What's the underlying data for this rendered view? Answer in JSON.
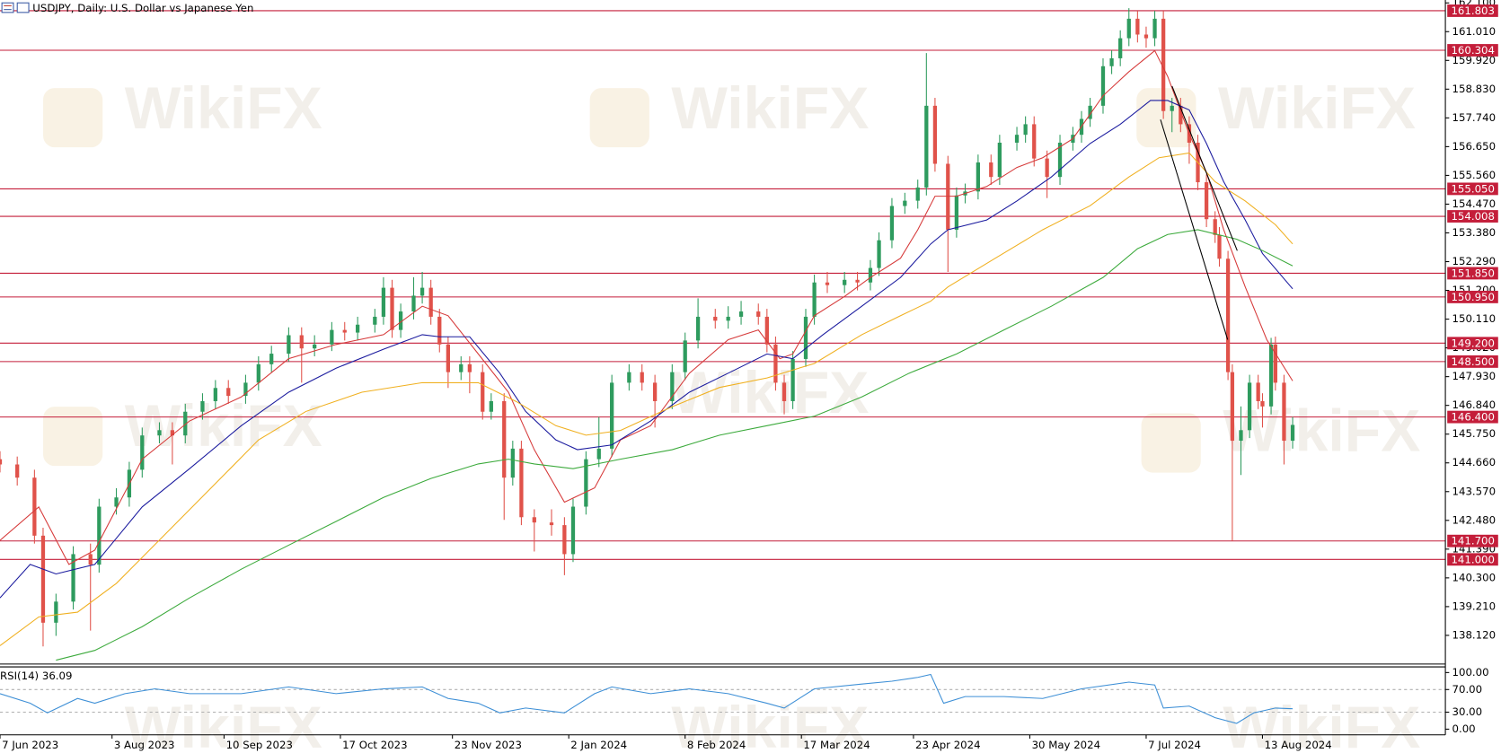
{
  "chart_data": {
    "type": "candlestick",
    "title": "USDJPY, Daily:  U.S. Dollar vs Japanese Yen",
    "watermark": "WikiFX",
    "xlim": [
      0,
      335
    ],
    "xticks": [
      {
        "value": 0,
        "label": "7 Jun 2023"
      },
      {
        "value": 26,
        "label": "3 Aug 2023"
      },
      {
        "value": 52,
        "label": "10 Sep 2023"
      },
      {
        "value": 79,
        "label": "17 Oct 2023"
      },
      {
        "value": 105,
        "label": "23 Nov 2023"
      },
      {
        "value": 132,
        "label": "2 Jan 2024"
      },
      {
        "value": 159,
        "label": "8 Feb 2024"
      },
      {
        "value": 186,
        "label": "17 Mar 2024"
      },
      {
        "value": 212,
        "label": "23 Apr 2024"
      },
      {
        "value": 239,
        "label": "30 May 2024"
      },
      {
        "value": 266,
        "label": "7 Jul 2024"
      },
      {
        "value": 293,
        "label": "13 Aug 2024"
      }
    ],
    "ylim": [
      137.07,
      162.21
    ],
    "yticks": [
      {
        "value": 162.1,
        "label": "162.100"
      },
      {
        "value": 161.01,
        "label": "161.010"
      },
      {
        "value": 159.92,
        "label": "159.920"
      },
      {
        "value": 158.83,
        "label": "158.830"
      },
      {
        "value": 157.74,
        "label": "157.740"
      },
      {
        "value": 156.65,
        "label": "156.650"
      },
      {
        "value": 155.56,
        "label": "155.560"
      },
      {
        "value": 154.47,
        "label": "154.470"
      },
      {
        "value": 153.38,
        "label": "153.380"
      },
      {
        "value": 152.29,
        "label": "152.290"
      },
      {
        "value": 151.2,
        "label": "151.200"
      },
      {
        "value": 150.11,
        "label": "150.110"
      },
      {
        "value": 149.02,
        "label": "149.020"
      },
      {
        "value": 147.93,
        "label": "147.930"
      },
      {
        "value": 146.84,
        "label": "146.840"
      },
      {
        "value": 145.75,
        "label": "145.750"
      },
      {
        "value": 144.66,
        "label": "144.660"
      },
      {
        "value": 143.57,
        "label": "143.570"
      },
      {
        "value": 142.48,
        "label": "142.480"
      },
      {
        "value": 141.39,
        "label": "141.390"
      },
      {
        "value": 140.3,
        "label": "140.300"
      },
      {
        "value": 139.21,
        "label": "139.210"
      },
      {
        "value": 138.12,
        "label": "138.120"
      }
    ],
    "levels": {
      "color": "#c41e3a",
      "values": [
        {
          "value": 161.803,
          "label": "161.803"
        },
        {
          "value": 160.304,
          "label": "160.304"
        },
        {
          "value": 155.05,
          "label": "155.050"
        },
        {
          "value": 154.008,
          "label": "154.008"
        },
        {
          "value": 151.85,
          "label": "151.850"
        },
        {
          "value": 150.95,
          "label": "150.950"
        },
        {
          "value": 149.2,
          "label": "149.200"
        },
        {
          "value": 148.5,
          "label": "148.500"
        },
        {
          "value": 146.4,
          "label": "146.400"
        },
        {
          "value": 141.7,
          "label": "141.700"
        },
        {
          "value": 141.0,
          "label": "141.000"
        }
      ]
    },
    "candles": {
      "up_color": "#2e9b5e",
      "down_color": "#e0524a",
      "x": [
        0,
        4,
        8,
        10,
        13,
        17,
        21,
        23,
        27,
        30,
        33,
        37,
        40,
        43,
        47,
        50,
        53,
        57,
        60,
        63,
        67,
        70,
        73,
        77,
        80,
        83,
        87,
        89,
        91,
        93,
        96,
        98,
        100,
        102,
        104,
        107,
        109,
        112,
        114,
        117,
        119,
        121,
        124,
        128,
        131,
        133,
        136,
        139,
        142,
        146,
        149,
        152,
        156,
        159,
        162,
        166,
        169,
        172,
        176,
        178,
        180,
        182,
        184,
        187,
        189,
        192,
        196,
        199,
        202,
        204,
        207,
        210,
        213,
        215,
        217,
        220,
        222,
        224,
        227,
        230,
        232,
        236,
        238,
        240,
        243,
        246,
        249,
        251,
        253,
        256,
        258,
        260,
        262,
        264,
        266,
        268,
        270,
        272,
        274,
        276,
        278,
        280,
        282,
        283,
        285,
        286,
        288,
        290,
        292,
        293,
        295,
        296,
        298,
        300
      ],
      "open": [
        144.8,
        144.6,
        144.1,
        141.9,
        138.6,
        139.4,
        141.2,
        140.8,
        143.0,
        143.35,
        144.4,
        145.7,
        145.9,
        145.7,
        146.6,
        147.0,
        147.5,
        147.2,
        147.7,
        148.4,
        148.8,
        149.5,
        149.0,
        149.15,
        149.7,
        149.6,
        149.9,
        150.2,
        151.3,
        149.7,
        150.4,
        151.0,
        151.3,
        150.2,
        149.15,
        148.1,
        148.4,
        148.1,
        146.6,
        147.0,
        144.1,
        145.2,
        142.6,
        142.4,
        142.3,
        141.2,
        143.0,
        144.8,
        145.2,
        147.7,
        148.1,
        147.7,
        147.0,
        148.1,
        149.3,
        150.2,
        150.05,
        150.2,
        150.4,
        150.2,
        149.15,
        147.7,
        147.0,
        148.6,
        150.2,
        151.5,
        151.4,
        151.6,
        151.5,
        152.05,
        153.1,
        154.4,
        154.6,
        155.1,
        158.2,
        156.0,
        153.5,
        154.8,
        154.95,
        156.05,
        155.5,
        156.8,
        157.1,
        157.5,
        156.2,
        155.5,
        156.8,
        157.1,
        157.7,
        158.2,
        159.7,
        160.0,
        160.76,
        161.5,
        160.9,
        160.76,
        161.5,
        158.0,
        158.2,
        157.5,
        156.8,
        155.3,
        153.9,
        153.3,
        152.4,
        148.1,
        145.5,
        145.9,
        147.7,
        147.0,
        146.8,
        149.15,
        147.7,
        145.5
      ],
      "high": [
        145.1,
        144.9,
        144.4,
        142.2,
        139.7,
        141.5,
        141.6,
        143.3,
        143.7,
        144.7,
        146.0,
        146.2,
        146.2,
        146.9,
        147.3,
        147.8,
        147.8,
        148.0,
        148.7,
        149.1,
        149.8,
        149.8,
        149.5,
        150.0,
        150.0,
        150.2,
        150.5,
        151.7,
        151.6,
        150.7,
        151.7,
        151.9,
        151.6,
        150.5,
        149.45,
        148.7,
        148.7,
        148.4,
        147.3,
        147.3,
        145.5,
        145.5,
        142.9,
        142.9,
        142.6,
        143.3,
        145.1,
        146.4,
        148.0,
        148.4,
        148.4,
        148.0,
        148.4,
        149.6,
        150.9,
        150.5,
        150.6,
        150.8,
        150.7,
        150.5,
        149.45,
        148.0,
        148.9,
        150.5,
        151.8,
        151.9,
        151.9,
        151.9,
        152.35,
        153.4,
        154.7,
        154.9,
        155.4,
        160.2,
        158.5,
        156.3,
        155.1,
        155.25,
        156.35,
        156.35,
        157.1,
        157.4,
        157.8,
        157.8,
        156.5,
        157.1,
        157.4,
        158.0,
        158.5,
        160.0,
        160.3,
        161.06,
        161.9,
        161.8,
        161.2,
        161.8,
        161.8,
        158.5,
        158.5,
        157.8,
        157.1,
        155.6,
        154.2,
        153.6,
        152.7,
        148.4,
        146.8,
        148.0,
        148.0,
        147.3,
        149.4,
        149.45,
        148.0,
        146.4
      ],
      "low": [
        144.3,
        143.8,
        141.6,
        137.7,
        138.1,
        139.1,
        138.3,
        140.5,
        142.7,
        143.0,
        144.1,
        145.4,
        144.6,
        145.4,
        146.3,
        146.7,
        146.9,
        146.9,
        147.4,
        148.1,
        148.5,
        147.7,
        148.7,
        148.9,
        149.3,
        149.3,
        149.6,
        149.9,
        149.4,
        149.4,
        150.1,
        150.7,
        149.9,
        148.85,
        147.5,
        147.8,
        147.3,
        146.3,
        146.3,
        142.5,
        143.8,
        142.3,
        141.3,
        141.9,
        140.4,
        140.9,
        142.7,
        144.5,
        144.9,
        147.4,
        147.4,
        146.0,
        146.7,
        147.8,
        149.0,
        149.75,
        149.75,
        149.9,
        149.9,
        148.85,
        147.4,
        146.5,
        146.7,
        148.3,
        149.9,
        151.1,
        151.1,
        151.2,
        151.2,
        151.75,
        152.8,
        154.1,
        154.3,
        154.8,
        155.7,
        151.9,
        153.2,
        154.5,
        154.65,
        155.2,
        155.2,
        156.5,
        156.8,
        155.9,
        154.7,
        155.2,
        156.5,
        156.8,
        157.4,
        157.9,
        159.4,
        159.7,
        160.46,
        160.6,
        160.4,
        160.46,
        157.7,
        157.2,
        157.2,
        156.0,
        155.0,
        153.6,
        153.0,
        152.1,
        147.8,
        141.7,
        144.2,
        145.6,
        146.7,
        146.0,
        146.5,
        147.4,
        144.6,
        145.2
      ],
      "close": [
        144.6,
        144.1,
        141.9,
        138.6,
        139.4,
        141.2,
        140.8,
        143.0,
        143.35,
        144.4,
        145.7,
        145.9,
        145.7,
        146.6,
        147.0,
        147.5,
        147.2,
        147.7,
        148.4,
        148.8,
        149.5,
        149.0,
        149.15,
        149.7,
        149.6,
        149.9,
        150.2,
        151.3,
        149.7,
        150.4,
        151.0,
        151.3,
        150.2,
        149.15,
        148.1,
        148.4,
        148.1,
        146.6,
        147.0,
        144.1,
        145.2,
        142.6,
        142.4,
        142.3,
        141.2,
        143.0,
        144.8,
        145.2,
        147.7,
        148.1,
        147.7,
        147.0,
        148.1,
        149.3,
        150.2,
        150.05,
        150.2,
        150.4,
        150.2,
        149.15,
        147.7,
        147.0,
        148.6,
        150.2,
        151.5,
        151.4,
        151.6,
        151.5,
        152.05,
        153.1,
        154.4,
        154.6,
        155.1,
        158.2,
        156.0,
        153.5,
        154.8,
        154.95,
        156.05,
        155.5,
        156.8,
        157.1,
        157.5,
        156.2,
        155.5,
        156.8,
        157.1,
        157.7,
        158.2,
        159.7,
        160.0,
        160.76,
        161.5,
        160.9,
        160.76,
        161.5,
        158.0,
        158.2,
        157.5,
        156.8,
        155.3,
        153.9,
        153.3,
        152.4,
        148.1,
        145.5,
        145.9,
        147.7,
        147.0,
        146.8,
        149.15,
        147.7,
        145.5,
        146.1
      ]
    },
    "series": [
      {
        "color": "#d63a3a",
        "x": [
          0,
          9,
          16,
          22,
          33,
          44,
          56,
          67,
          78,
          89,
          98,
          104,
          111,
          118,
          124,
          131,
          138,
          144,
          151,
          160,
          169,
          176,
          181,
          184,
          189,
          196,
          202,
          209,
          213,
          217,
          222,
          229,
          236,
          242,
          249,
          256,
          262,
          268,
          271,
          276,
          280,
          284,
          289,
          294,
          300
        ],
        "values": [
          141.72,
          142.99,
          140.81,
          141.35,
          144.8,
          146.25,
          147.16,
          148.61,
          149.15,
          149.52,
          150.6,
          150.24,
          148.79,
          147.34,
          145.16,
          143.17,
          143.71,
          145.53,
          146.07,
          148.06,
          149.33,
          149.7,
          148.61,
          148.79,
          150.24,
          150.97,
          151.69,
          152.42,
          153.5,
          154.77,
          154.77,
          155.14,
          155.86,
          156.23,
          156.95,
          158.58,
          159.49,
          160.29,
          159.31,
          157.13,
          155.68,
          153.5,
          151.33,
          149.33,
          147.77
        ]
      },
      {
        "color": "#1a1a9e",
        "x": [
          0,
          7,
          13,
          22,
          33,
          44,
          56,
          67,
          78,
          89,
          98,
          102,
          109,
          116,
          122,
          129,
          134,
          142,
          151,
          160,
          169,
          178,
          184,
          191,
          200,
          209,
          216,
          220,
          229,
          236,
          244,
          253,
          260,
          267,
          271,
          276,
          280,
          284,
          289,
          293,
          300
        ],
        "values": [
          139.54,
          140.81,
          140.45,
          140.81,
          142.99,
          144.44,
          146.07,
          147.34,
          148.25,
          148.97,
          149.52,
          149.44,
          149.44,
          148.06,
          146.61,
          145.53,
          145.16,
          145.34,
          146.25,
          147.34,
          148.06,
          148.79,
          148.61,
          149.52,
          150.6,
          151.69,
          152.96,
          153.5,
          153.87,
          154.59,
          155.5,
          156.77,
          157.5,
          158.4,
          158.4,
          158.04,
          156.77,
          155.32,
          153.87,
          152.6,
          151.26
        ]
      },
      {
        "color": "#f0b020",
        "x": [
          0,
          9,
          18,
          27,
          38,
          49,
          60,
          71,
          84,
          98,
          104,
          111,
          120,
          129,
          136,
          144,
          156,
          167,
          178,
          189,
          200,
          209,
          216,
          220,
          231,
          242,
          253,
          262,
          269,
          276,
          282,
          289,
          296,
          300
        ],
        "values": [
          137.73,
          138.82,
          139.0,
          140.09,
          141.9,
          143.71,
          145.53,
          146.61,
          147.34,
          147.7,
          147.7,
          147.7,
          146.97,
          146.07,
          145.71,
          145.89,
          146.79,
          147.52,
          147.88,
          148.43,
          149.52,
          150.24,
          150.79,
          151.33,
          152.42,
          153.5,
          154.41,
          155.5,
          156.23,
          156.41,
          155.32,
          154.59,
          153.69,
          152.96
        ]
      },
      {
        "color": "#3caa3c",
        "x": [
          13,
          22,
          33,
          44,
          56,
          67,
          78,
          89,
          100,
          111,
          118,
          124,
          133,
          144,
          156,
          167,
          178,
          189,
          200,
          211,
          222,
          233,
          244,
          256,
          264,
          271,
          278,
          287,
          293,
          300
        ],
        "values": [
          137.18,
          137.55,
          138.45,
          139.54,
          140.63,
          141.54,
          142.44,
          143.35,
          144.07,
          144.62,
          144.8,
          144.62,
          144.44,
          144.8,
          145.16,
          145.71,
          146.07,
          146.43,
          147.16,
          148.06,
          148.79,
          149.7,
          150.6,
          151.69,
          152.78,
          153.32,
          153.5,
          153.14,
          152.71,
          152.13
        ]
      }
    ],
    "rsi": {
      "label": "RSI(14) 36.09",
      "color": "#3d8fd6",
      "ylim": [
        -10,
        110
      ],
      "yticks": [
        {
          "value": 100,
          "label": "100.00"
        },
        {
          "value": 70,
          "label": "70.00"
        },
        {
          "value": 30,
          "label": "30.00"
        },
        {
          "value": 0,
          "label": "0.00"
        }
      ],
      "levels": [
        70,
        30
      ],
      "x": [
        0,
        7,
        11,
        18,
        22,
        29,
        36,
        44,
        56,
        67,
        78,
        89,
        98,
        104,
        111,
        116,
        122,
        131,
        138,
        142,
        151,
        160,
        169,
        178,
        182,
        189,
        200,
        207,
        213,
        216,
        219,
        224,
        233,
        242,
        251,
        262,
        268,
        270,
        276,
        282,
        287,
        291,
        296,
        300
      ],
      "values": [
        62.7,
        45.8,
        28.8,
        54.2,
        45.8,
        62.7,
        71.2,
        62.7,
        62.7,
        74.6,
        62.7,
        71.2,
        74.6,
        54.2,
        45.8,
        28.8,
        37.3,
        28.8,
        62.7,
        74.6,
        62.7,
        71.2,
        62.7,
        45.8,
        37.3,
        71.2,
        79.7,
        84.7,
        91.5,
        96.6,
        45.8,
        57.6,
        57.6,
        54.2,
        71.2,
        83.1,
        78.0,
        37.3,
        40.7,
        20.3,
        10.2,
        28.8,
        37.3,
        36.1
      ]
    }
  }
}
